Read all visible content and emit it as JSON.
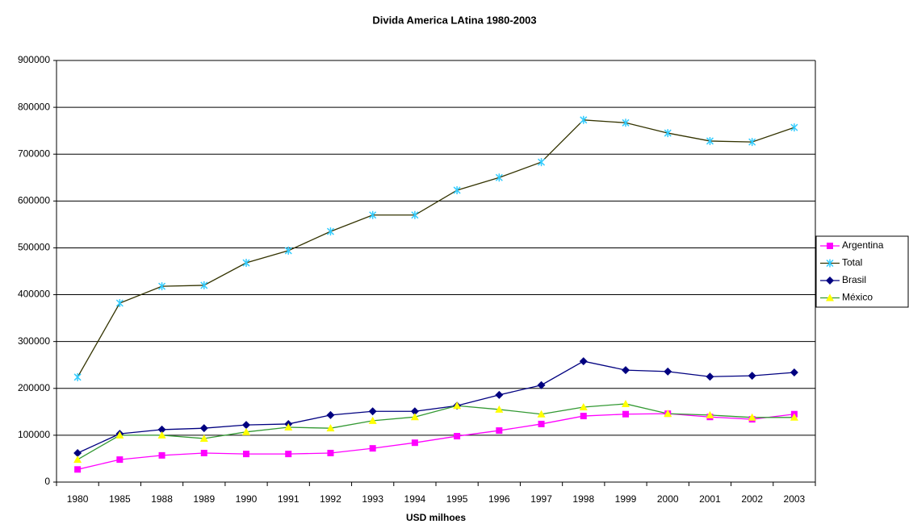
{
  "chart_data": {
    "type": "line",
    "title": "Divida America LAtina 1980-2003",
    "x_label": "USD milhoes",
    "categories": [
      "1980",
      "1985",
      "1988",
      "1989",
      "1990",
      "1991",
      "1992",
      "1993",
      "1994",
      "1995",
      "1996",
      "1997",
      "1998",
      "1999",
      "2000",
      "2001",
      "2002",
      "2003"
    ],
    "ylim": [
      0,
      900000
    ],
    "yticks": [
      0,
      100000,
      200000,
      300000,
      400000,
      500000,
      600000,
      700000,
      800000,
      900000
    ],
    "grid": true,
    "legend": "right",
    "series": [
      {
        "name": "Argentina",
        "color": "#ff00ff",
        "marker": "square",
        "marker_color": "#ff00ff",
        "values": [
          27000,
          48000,
          57000,
          62000,
          60000,
          60000,
          62000,
          72000,
          84000,
          98000,
          110000,
          124000,
          141000,
          145000,
          146000,
          139000,
          134000,
          145000
        ]
      },
      {
        "name": "Total",
        "color": "#333300",
        "marker": "star",
        "marker_color": "#33ccff",
        "values": [
          224000,
          382000,
          418000,
          420000,
          468000,
          494000,
          535000,
          570000,
          570000,
          623000,
          650000,
          683000,
          773000,
          767000,
          745000,
          728000,
          726000,
          757000
        ]
      },
      {
        "name": "Brasil",
        "color": "#000080",
        "marker": "diamond",
        "marker_color": "#000080",
        "values": [
          62000,
          103000,
          112000,
          115000,
          122000,
          124000,
          143000,
          151000,
          151000,
          163000,
          186000,
          207000,
          258000,
          239000,
          236000,
          225000,
          227000,
          234000
        ]
      },
      {
        "name": "México",
        "color": "#339933",
        "marker": "triangle",
        "marker_color": "#ffff00",
        "values": [
          48000,
          100000,
          100000,
          93000,
          107000,
          117000,
          115000,
          131000,
          139000,
          163000,
          155000,
          145000,
          160000,
          167000,
          146000,
          143000,
          138000,
          138000
        ]
      }
    ]
  }
}
